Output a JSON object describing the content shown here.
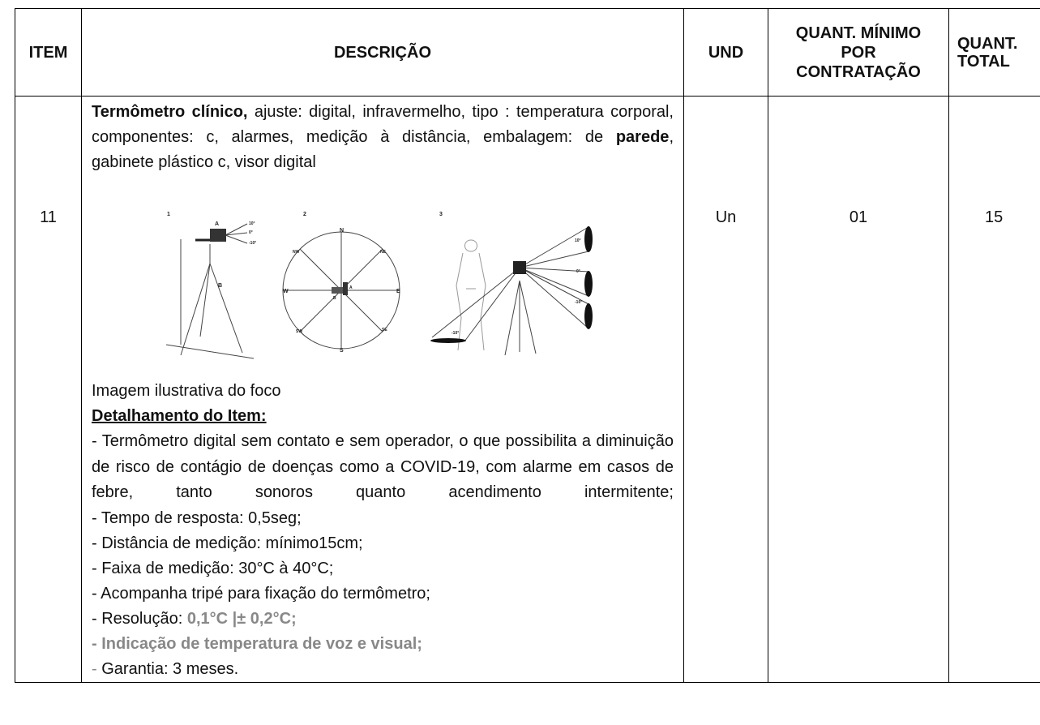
{
  "header": [
    "ITEM",
    "DESCRIÇÃO",
    "UND",
    "QUANT. MÍNIMO POR CONTRATAÇÃO",
    "QUANT. TOTAL"
  ],
  "row": {
    "item": "11",
    "unit": "Un",
    "min_quantity": "01",
    "total_quantity": "15",
    "description": {
      "intro": [
        "Termômetro clínico,",
        "ajuste: digital, infravermelho, tipo : temperatura corporal, componentes: c, alarmes, medição à distância, embalagem: de",
        "parede",
        ", gabinete plástico c, visor digital"
      ],
      "figure": {
        "panels": [
          "1",
          "2",
          "3"
        ],
        "tripod_labels": [
          "A",
          "B"
        ],
        "tripod_angles": [
          "10°",
          "0°",
          "-10°"
        ],
        "compass": [
          "N",
          "NE",
          "E",
          "SE",
          "S",
          "SW",
          "W",
          "NW"
        ],
        "compass_labels": [
          "A",
          "B"
        ],
        "cone_angles": [
          "10°",
          "0°",
          "-10°"
        ],
        "ground_angle": "-10°"
      },
      "caption": "Imagem ilustrativa do foco",
      "detail_heading": "Detalhamento do Item:",
      "detail_items": [
        "- Termômetro digital sem contato e sem operador, o que possibilita a diminuição de risco de contágio de doenças como a COVID-19, com alarme em casos de febre, tanto sonoros quanto acendimento intermitente;",
        "- Tempo de resposta: 0,5seg;",
        "- Distância de medição: mínimo15cm;",
        "- Faixa de medição: 30°C à 40°C;",
        "- Acompanha tripé para fixação do termômetro;",
        [
          "- Resolução:",
          "0,1°C |± 0,2°C;"
        ],
        "- Indicação de temperatura de voz e visual;",
        [
          "-",
          "Garantia: 3 meses."
        ]
      ]
    }
  }
}
